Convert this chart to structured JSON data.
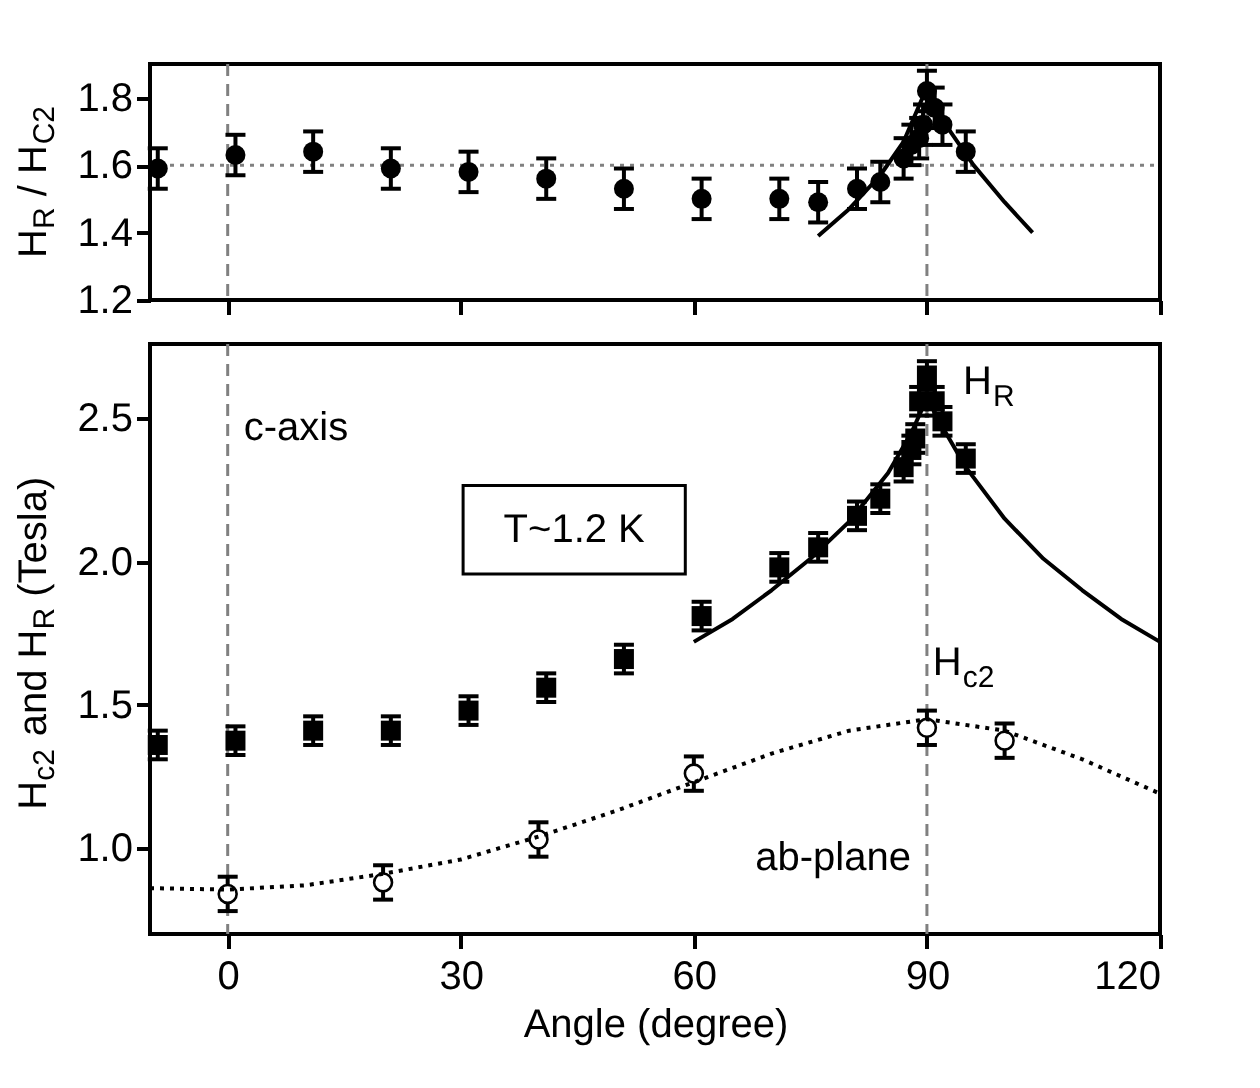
{
  "chart_data": [
    {
      "type": "scatter",
      "ylabel": "H$_{R}$ / H$_{C2}$",
      "xlim": [
        -10,
        120
      ],
      "xticks": [
        0,
        30,
        60,
        90,
        120
      ],
      "ylim": [
        1.2,
        1.9
      ],
      "yticks": [
        1.2,
        1.4,
        1.6,
        1.8
      ],
      "tick_labels": "y",
      "grid": false,
      "series": [
        {
          "type": "scatter",
          "marker": "circle",
          "color": "#000000",
          "x": [
            -9,
            1,
            11,
            21,
            31,
            41,
            51,
            61,
            71,
            76,
            81,
            84,
            87,
            88,
            89,
            89.5,
            90,
            91,
            92,
            95
          ],
          "values": [
            1.59,
            1.63,
            1.64,
            1.59,
            1.58,
            1.56,
            1.53,
            1.5,
            1.5,
            1.49,
            1.53,
            1.55,
            1.62,
            1.66,
            1.68,
            1.72,
            1.82,
            1.77,
            1.72,
            1.64
          ],
          "errors": [
            0.06,
            0.06,
            0.06,
            0.06,
            0.06,
            0.06,
            0.06,
            0.06,
            0.06,
            0.06,
            0.06,
            0.06,
            0.06,
            0.06,
            0.06,
            0.06,
            0.06,
            0.06,
            0.06,
            0.06
          ]
        },
        {
          "type": "line",
          "marker": "none",
          "line_style": "solid",
          "color": "#000000",
          "x": [
            76,
            80,
            84,
            87,
            90,
            93,
            96,
            100,
            103.6
          ],
          "values": [
            1.39,
            1.47,
            1.57,
            1.67,
            1.83,
            1.7,
            1.6,
            1.49,
            1.4
          ]
        }
      ],
      "ref_lines": [
        {
          "axis": "x",
          "value": 0,
          "color": "#808080",
          "line_style": "dashed"
        },
        {
          "axis": "x",
          "value": 90,
          "color": "#808080",
          "line_style": "dashed"
        },
        {
          "axis": "y",
          "value": 1.6,
          "color": "#808080",
          "line_style": "dotted"
        }
      ]
    },
    {
      "type": "scatter",
      "xlabel": "Angle (degree)",
      "ylabel": "H$_{c2}$ and H$_{R}$ (Tesla)",
      "xlim": [
        -10,
        120
      ],
      "xticks": [
        0,
        30,
        60,
        90,
        120
      ],
      "ylim": [
        0.7,
        2.76
      ],
      "yticks": [
        {
          "value": 1.0,
          "label": "1.0"
        },
        1.5,
        {
          "value": 2.0,
          "label": "2.0"
        },
        2.5
      ],
      "grid": false,
      "series": [
        {
          "type": "scatter",
          "marker": "square",
          "color": "#000000",
          "x": [
            -9,
            1,
            11,
            21,
            31,
            41,
            51,
            61,
            71,
            76,
            81,
            84,
            87,
            88,
            88.5,
            89,
            90,
            91,
            92,
            95
          ],
          "values": [
            1.36,
            1.375,
            1.41,
            1.41,
            1.48,
            1.56,
            1.66,
            1.81,
            1.98,
            2.05,
            2.16,
            2.22,
            2.33,
            2.39,
            2.43,
            2.56,
            2.65,
            2.56,
            2.49,
            2.36
          ],
          "errors": [
            0.05,
            0.05,
            0.05,
            0.05,
            0.05,
            0.05,
            0.05,
            0.05,
            0.05,
            0.05,
            0.05,
            0.05,
            0.05,
            0.05,
            0.05,
            0.05,
            0.05,
            0.05,
            0.05,
            0.05
          ]
        },
        {
          "type": "scatter",
          "marker": "circle",
          "color": "#000000",
          "x": [
            0,
            20,
            40,
            60,
            90,
            100
          ],
          "values": [
            0.84,
            0.88,
            1.03,
            1.26,
            1.42,
            1.375
          ],
          "errors": [
            0.06,
            0.06,
            0.06,
            0.06,
            0.06,
            0.06
          ]
        },
        {
          "type": "line",
          "marker": "none",
          "line_style": "solid",
          "color": "#000000",
          "x": [
            60,
            65,
            70,
            75,
            80,
            85,
            88,
            90,
            92,
            95,
            100,
            105,
            110,
            115,
            120
          ],
          "values": [
            1.72,
            1.8,
            1.9,
            2.01,
            2.14,
            2.31,
            2.45,
            2.57,
            2.47,
            2.33,
            2.15,
            2.01,
            1.9,
            1.8,
            1.72
          ]
        },
        {
          "type": "line",
          "marker": "none",
          "line_style": "dotted",
          "color": "#000000",
          "x": [
            -10,
            0,
            10,
            20,
            30,
            40,
            50,
            60,
            70,
            80,
            90,
            100,
            110,
            120
          ],
          "values": [
            0.86,
            0.855,
            0.87,
            0.91,
            0.96,
            1.04,
            1.13,
            1.23,
            1.33,
            1.41,
            1.45,
            1.41,
            1.31,
            1.19
          ]
        }
      ],
      "ref_lines": [
        {
          "axis": "x",
          "value": 0,
          "label": "c-axis",
          "color": "#808080",
          "line_style": "dashed"
        },
        {
          "axis": "x",
          "value": 90,
          "label": "ab-plane",
          "color": "#808080",
          "line_style": "dashed"
        }
      ],
      "annotations": [
        "H$_{R}$",
        "H$_{c2}$",
        "T~1.2 K"
      ]
    }
  ]
}
